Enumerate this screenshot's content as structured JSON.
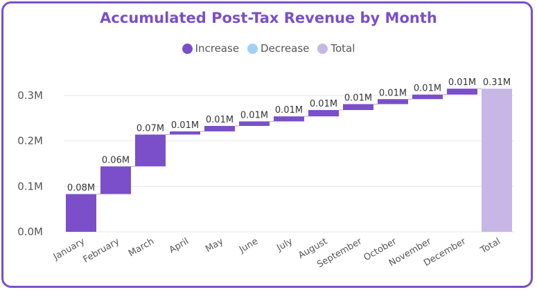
{
  "colors": {
    "increase": "#7a4fc9",
    "decrease": "#9fd0f5",
    "total": "#c7b6e6",
    "frame": "#7a4fc9",
    "title": "#7a4fc9",
    "grid": "#e6e6e6",
    "connector": "#b0b0b0"
  },
  "legend": [
    {
      "label": "Increase",
      "color_key": "increase"
    },
    {
      "label": "Decrease",
      "color_key": "decrease"
    },
    {
      "label": "Total",
      "color_key": "total"
    }
  ],
  "chart_data": {
    "type": "waterfall",
    "title": "Accumulated Post-Tax Revenue by Month",
    "xlabel": "",
    "ylabel": "",
    "ylim": [
      0,
      0.3
    ],
    "yticks": [
      {
        "value": 0.0,
        "label": "0.0M"
      },
      {
        "value": 0.1,
        "label": "0.1M"
      },
      {
        "value": 0.2,
        "label": "0.2M"
      },
      {
        "value": 0.3,
        "label": "0.3M"
      }
    ],
    "grid": true,
    "legend_position": "top-center",
    "categories": [
      "January",
      "February",
      "March",
      "April",
      "May",
      "June",
      "July",
      "August",
      "September",
      "October",
      "November",
      "December",
      "Total"
    ],
    "values": [
      0.083,
      0.061,
      0.07,
      0.007,
      0.012,
      0.01,
      0.011,
      0.014,
      0.013,
      0.011,
      0.01,
      0.013,
      0.315
    ],
    "kinds": [
      "increase",
      "increase",
      "increase",
      "increase",
      "increase",
      "increase",
      "increase",
      "increase",
      "increase",
      "increase",
      "increase",
      "increase",
      "total"
    ],
    "data_labels": [
      "0.08M",
      "0.06M",
      "0.07M",
      "0.01M",
      "0.01M",
      "0.01M",
      "0.01M",
      "0.01M",
      "0.01M",
      "0.01M",
      "0.01M",
      "0.01M",
      "0.31M"
    ]
  }
}
